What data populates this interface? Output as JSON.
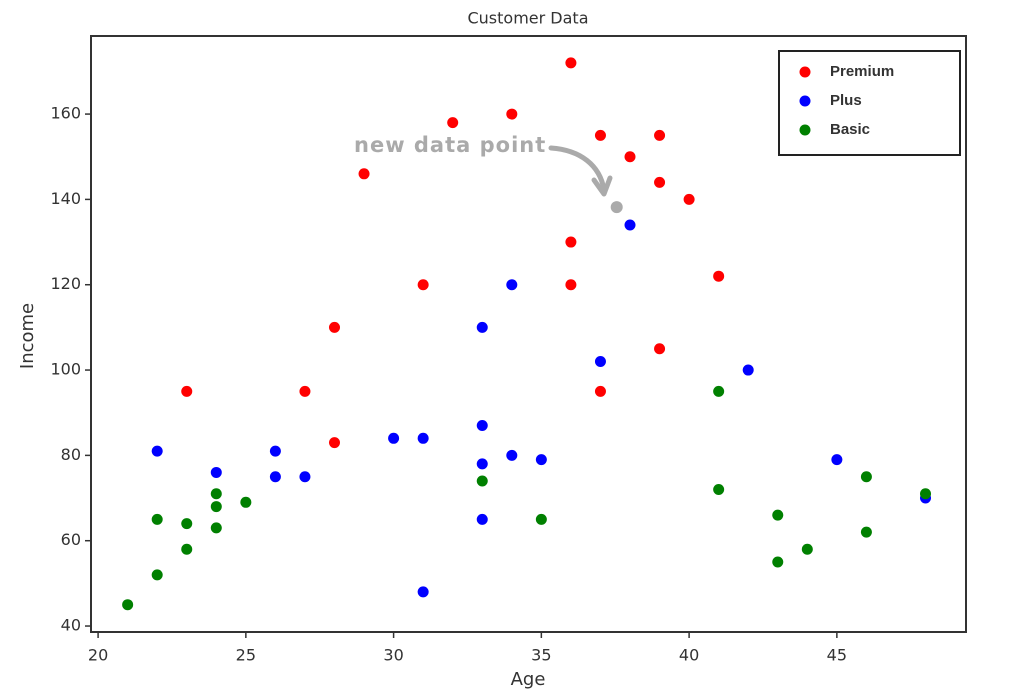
{
  "chart_data": {
    "type": "scatter",
    "title": "Customer Data",
    "x_label": "Age",
    "y_label": "Income",
    "xlim": [
      19.76,
      49.37
    ],
    "ylim": [
      38.6,
      178.3
    ],
    "xticks": [
      20,
      25,
      30,
      35,
      40,
      45
    ],
    "yticks": [
      40,
      60,
      80,
      100,
      120,
      140,
      160
    ],
    "legend": "upper right",
    "series": [
      {
        "name": "Premium",
        "color": "#ff0000",
        "x": [
          23,
          27,
          28,
          28,
          29,
          31,
          32,
          34,
          36,
          36,
          36,
          37,
          37,
          38,
          39,
          39,
          39,
          40,
          41
        ],
        "values": [
          95,
          95,
          110,
          83,
          146,
          120,
          158,
          160,
          172,
          130,
          120,
          155,
          95,
          150,
          155,
          144,
          105,
          140,
          122
        ]
      },
      {
        "name": "Plus",
        "color": "#0000ff",
        "x": [
          22,
          24,
          26,
          26,
          27,
          30,
          31,
          31,
          33,
          33,
          33,
          33,
          34,
          34,
          35,
          37,
          38,
          42,
          45,
          48
        ],
        "values": [
          81,
          76,
          81,
          75,
          75,
          84,
          84,
          48,
          110,
          87,
          78,
          65,
          120,
          80,
          79,
          102,
          134,
          100,
          79,
          70
        ]
      },
      {
        "name": "Basic",
        "color": "#008000",
        "x": [
          21,
          22,
          22,
          23,
          23,
          24,
          24,
          24,
          25,
          33,
          35,
          41,
          41,
          43,
          43,
          44,
          46,
          46,
          48
        ],
        "values": [
          45,
          65,
          52,
          64,
          58,
          71,
          68,
          63,
          69,
          74,
          65,
          95,
          72,
          66,
          55,
          58,
          75,
          62,
          71
        ]
      }
    ],
    "annotation": {
      "text": "new data point",
      "x": 37.55,
      "y": 138.2,
      "color": "#aaaaaa"
    }
  }
}
